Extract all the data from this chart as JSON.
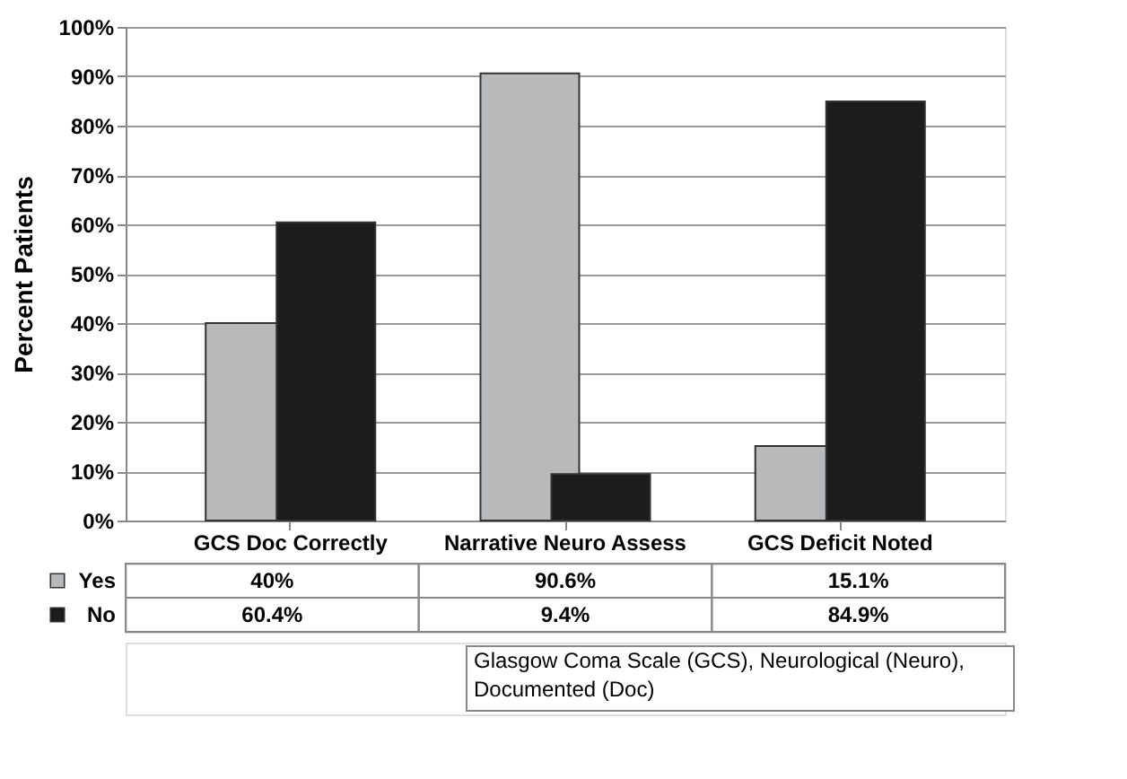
{
  "chart_data": {
    "type": "bar",
    "ylabel": "Percent Patients",
    "categories": [
      "GCS Doc Correctly",
      "Narrative Neuro Assess",
      "GCS Deficit Noted"
    ],
    "series": [
      {
        "name": "Yes",
        "color": "#b8b9bb",
        "values": [
          40,
          90.6,
          15.1
        ],
        "value_labels": [
          "40%",
          "90.6%",
          "15.1%"
        ]
      },
      {
        "name": "No",
        "color": "#1c1c1c",
        "values": [
          60.4,
          9.4,
          84.9
        ],
        "value_labels": [
          "60.4%",
          "9.4%",
          "84.9%"
        ]
      }
    ],
    "ylim": [
      0,
      100
    ],
    "yticks": [
      {
        "value": 0,
        "label": "0%"
      },
      {
        "value": 10,
        "label": "10%"
      },
      {
        "value": 20,
        "label": "20%"
      },
      {
        "value": 30,
        "label": "30%"
      },
      {
        "value": 40,
        "label": "40%"
      },
      {
        "value": 50,
        "label": "50%"
      },
      {
        "value": 60,
        "label": "60%"
      },
      {
        "value": 70,
        "label": "70%"
      },
      {
        "value": 80,
        "label": "80%"
      },
      {
        "value": 90,
        "label": "90%"
      },
      {
        "value": 100,
        "label": "100%"
      }
    ],
    "grid": "y",
    "legend": "bottom left",
    "annotations": [
      "Glasgow Coma Scale (GCS), Neurological (Neuro), Documented (Doc)"
    ]
  }
}
